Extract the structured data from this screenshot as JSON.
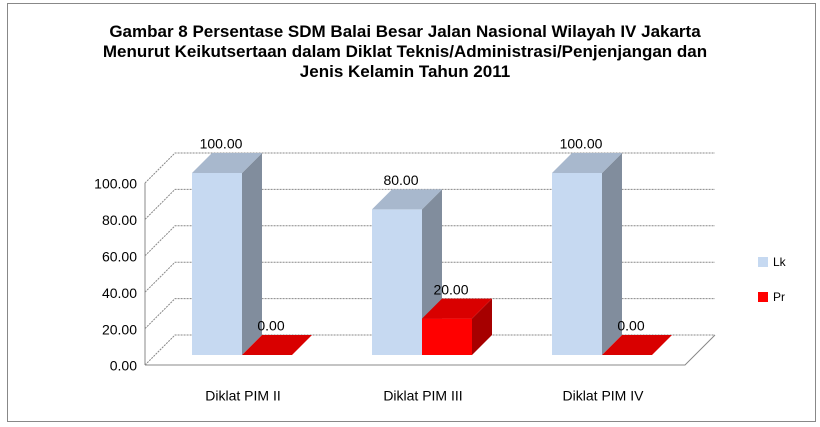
{
  "chart_data": {
    "type": "bar3d",
    "title": "Gambar 8 Persentase SDM Balai Besar Jalan Nasional Wilayah IV Jakarta Menurut Keikutsertaan dalam Diklat Teknis/Administrasi/Penjenjangan dan Jenis Kelamin Tahun 2011",
    "categories": [
      "Diklat PIM II",
      "Diklat PIM III",
      "Diklat PIM IV"
    ],
    "series": [
      {
        "name": "Lk",
        "color": "#c6d9f1",
        "values": [
          100,
          80,
          100
        ],
        "value_labels": [
          "100.00",
          "80.00",
          "100.00"
        ]
      },
      {
        "name": "Pr",
        "color": "#ff0000",
        "values": [
          0,
          20,
          0
        ],
        "value_labels": [
          "0.00",
          "20.00",
          "0.00"
        ]
      }
    ],
    "ylim": [
      0,
      100
    ],
    "yticks": [
      {
        "value": 0,
        "label": "0.00"
      },
      {
        "value": 20,
        "label": "20.00"
      },
      {
        "value": 40,
        "label": "40.00"
      },
      {
        "value": 60,
        "label": "60.00"
      },
      {
        "value": 80,
        "label": "80.00"
      },
      {
        "value": 100,
        "label": "100.00"
      }
    ],
    "grid": true,
    "legend": "right"
  }
}
